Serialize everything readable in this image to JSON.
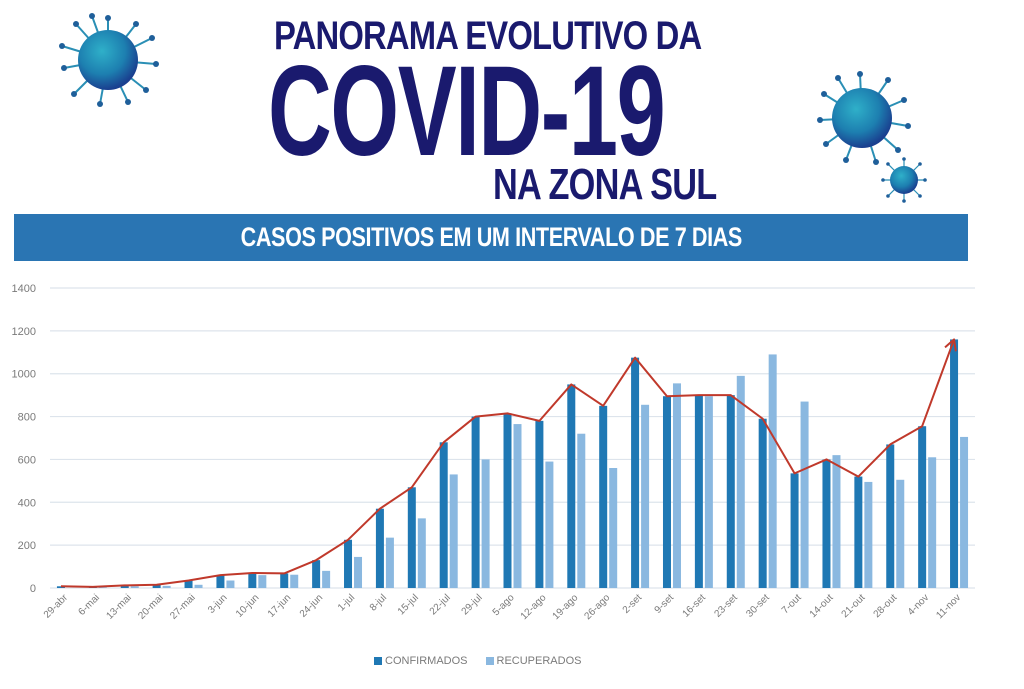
{
  "header": {
    "title_line1": "PANORAMA EVOLUTIVO DA",
    "title_line2": "COVID-19",
    "title_line3": "NA ZONA SUL",
    "banner": "CASOS POSITIVOS EM UM INTERVALO DE 7 DIAS",
    "icons": [
      "virus-icon",
      "virus-icon",
      "virus-icon"
    ]
  },
  "colors": {
    "title": "#1a1a6e",
    "banner_bg": "#2a75b3",
    "confirmed": "#1f78b4",
    "recovered": "#8ab8e0",
    "trend_line": "#c0392b",
    "gridline": "#dde4ec",
    "axis_text": "#7a7a7a"
  },
  "legend": {
    "confirmed_label": "CONFIRMADOS",
    "recovered_label": "RECUPERADOS"
  },
  "chart_data": {
    "type": "bar",
    "title": "CASOS POSITIVOS EM UM INTERVALO DE 7 DIAS",
    "xlabel": "",
    "ylabel": "",
    "ylim": [
      0,
      1400
    ],
    "yticks": [
      0,
      200,
      400,
      600,
      800,
      1000,
      1200,
      1400
    ],
    "grid": true,
    "legend_position": "bottom",
    "categories": [
      "29-abr",
      "6-mai",
      "13-mai",
      "20-mai",
      "27-mai",
      "3-jun",
      "10-jun",
      "17-jun",
      "24-jun",
      "1-jul",
      "8-jul",
      "15-jul",
      "22-jul",
      "29-jul",
      "5-ago",
      "12-ago",
      "19-ago",
      "26-ago",
      "2-set",
      "9-set",
      "16-set",
      "23-set",
      "30-set",
      "7-out",
      "14-out",
      "21-out",
      "28-out",
      "4-nov",
      "11-nov"
    ],
    "series": [
      {
        "name": "CONFIRMADOS",
        "type": "bar",
        "values": [
          8,
          5,
          12,
          15,
          35,
          60,
          70,
          68,
          130,
          225,
          370,
          470,
          680,
          800,
          815,
          780,
          950,
          850,
          1075,
          895,
          900,
          900,
          790,
          535,
          600,
          520,
          670,
          755,
          1160
        ]
      },
      {
        "name": "RECUPERADOS",
        "type": "bar",
        "values": [
          0,
          3,
          8,
          10,
          15,
          35,
          60,
          62,
          80,
          145,
          235,
          325,
          530,
          600,
          765,
          590,
          720,
          560,
          855,
          955,
          895,
          990,
          1090,
          870,
          620,
          495,
          505,
          610,
          705
        ]
      },
      {
        "name": "Tendência (confirmados)",
        "type": "line",
        "values": [
          8,
          5,
          12,
          15,
          35,
          60,
          70,
          68,
          130,
          225,
          370,
          470,
          680,
          800,
          815,
          780,
          950,
          850,
          1075,
          895,
          900,
          900,
          790,
          535,
          600,
          520,
          670,
          755,
          1160
        ],
        "annotation": "arrow at end pointing upward"
      }
    ]
  }
}
